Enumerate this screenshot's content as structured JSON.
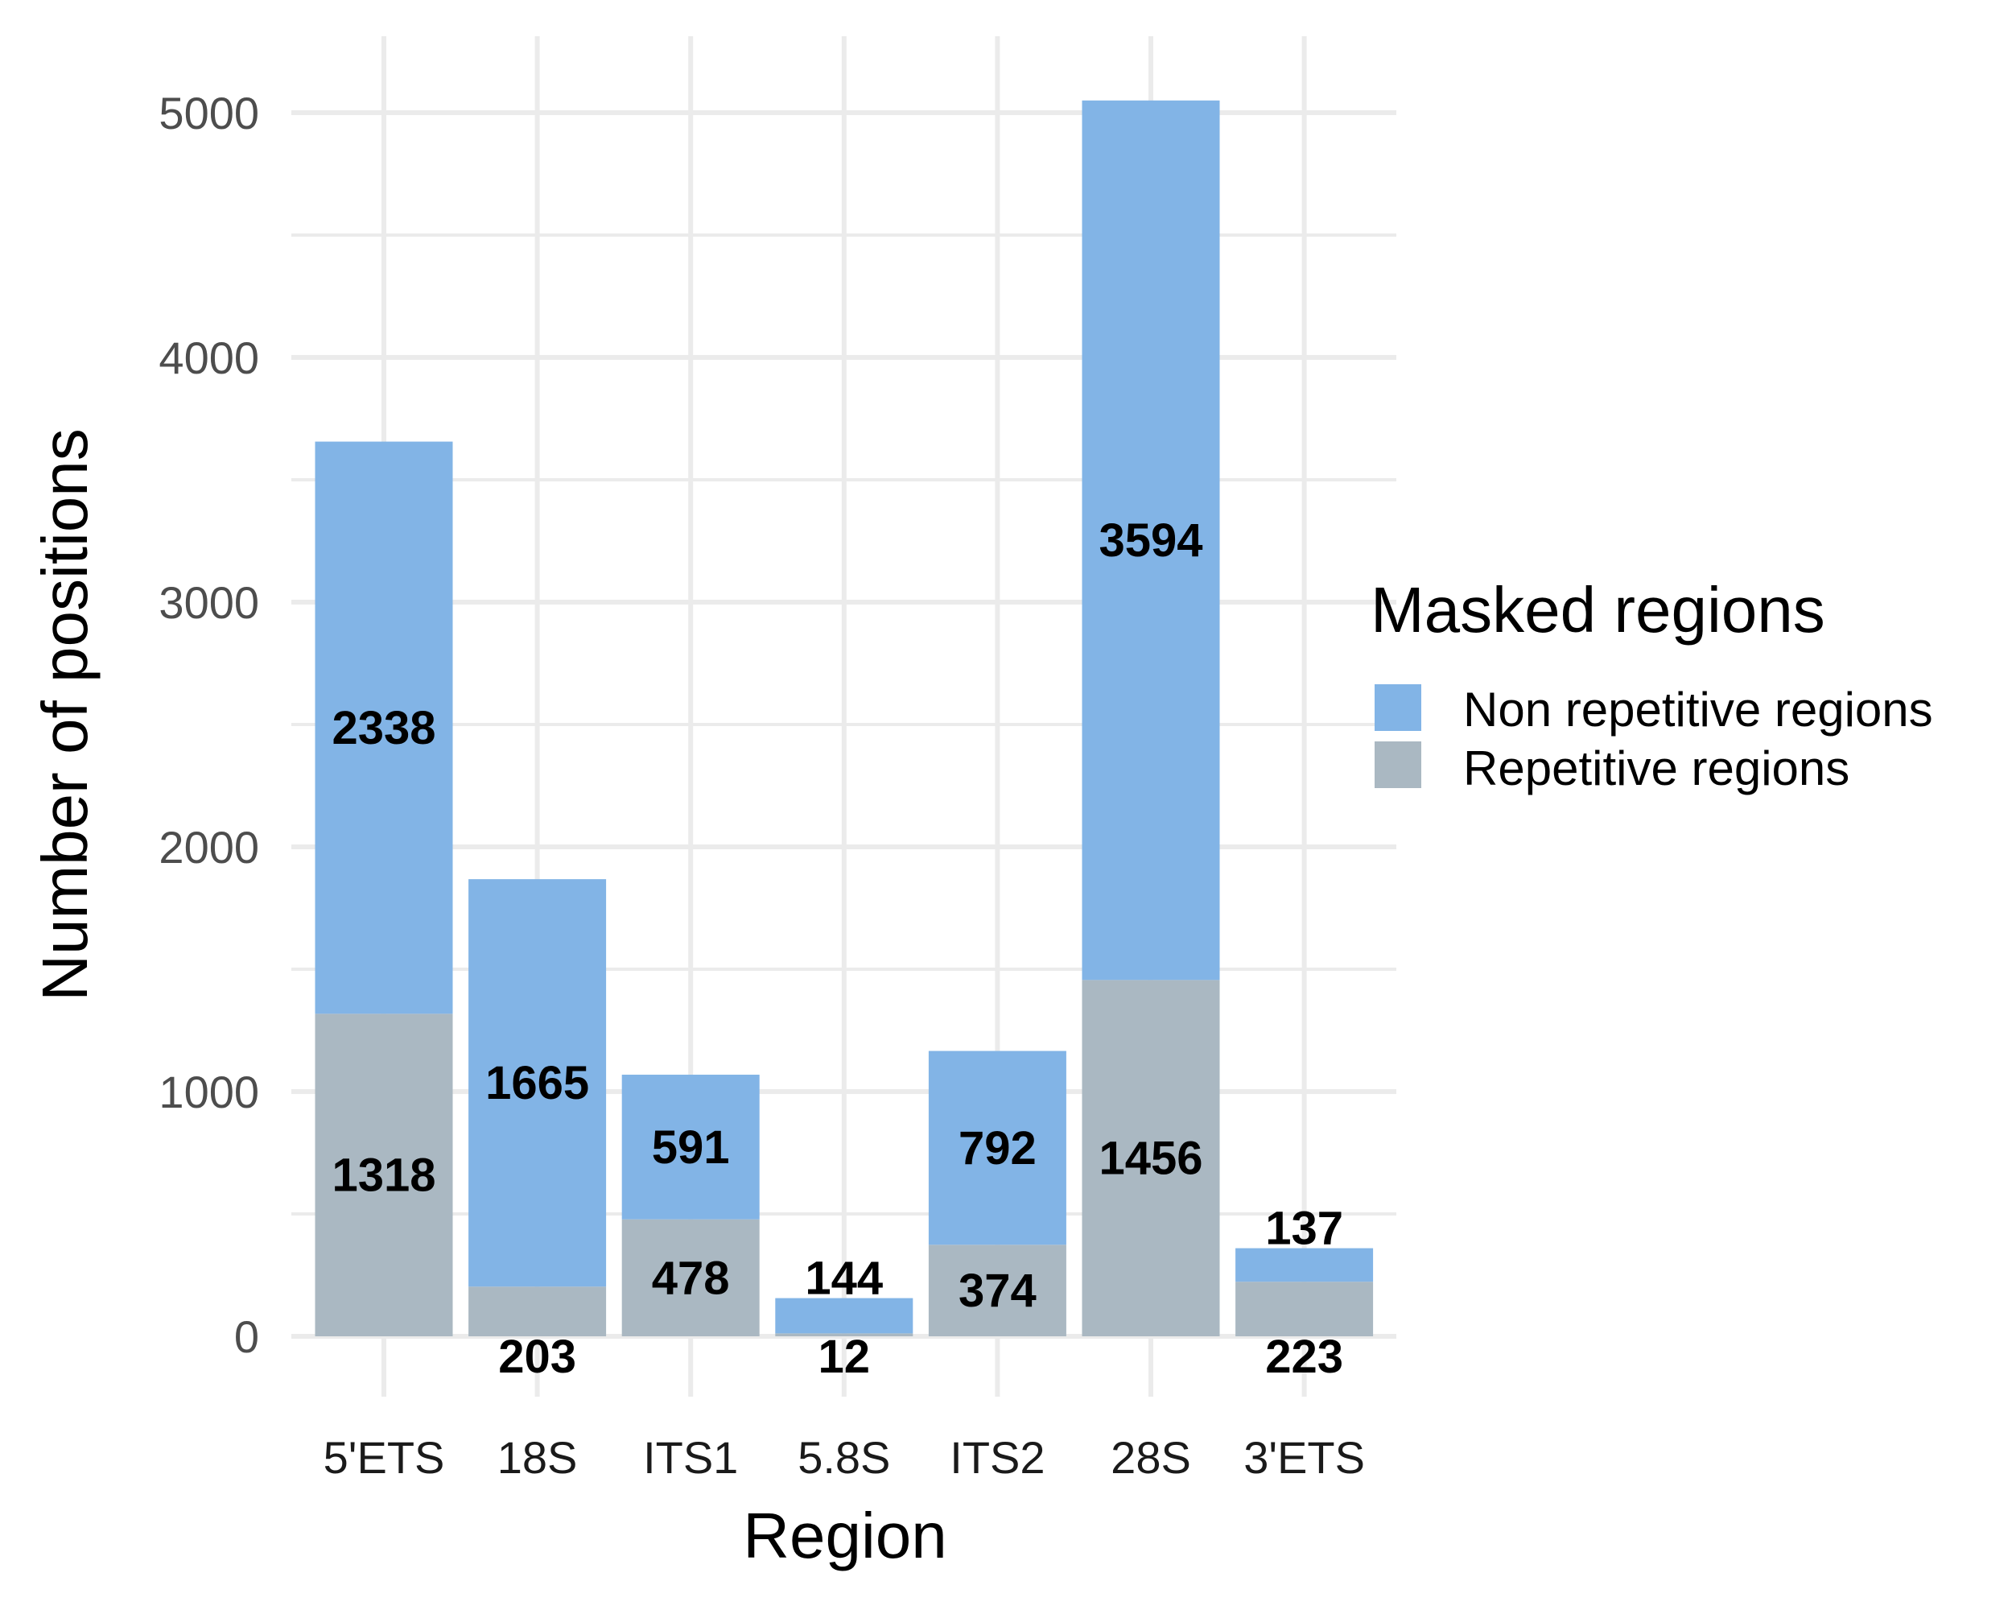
{
  "chart_data": {
    "type": "bar",
    "stacked": true,
    "xlabel": "Region",
    "ylabel": "Number of positions",
    "categories": [
      "5'ETS",
      "18S",
      "ITS1",
      "5.8S",
      "ITS2",
      "28S",
      "3'ETS"
    ],
    "series": [
      {
        "name": "Repetitive regions",
        "color": "#aab8c2",
        "values": [
          1318,
          203,
          478,
          12,
          374,
          1456,
          223
        ]
      },
      {
        "name": "Non repetitive regions",
        "color": "#82b4e6",
        "values": [
          2338,
          1665,
          591,
          144,
          792,
          3594,
          137
        ]
      }
    ],
    "ylim": [
      0,
      5000
    ],
    "yticks": [
      "0",
      "1000",
      "2000",
      "3000",
      "4000",
      "5000"
    ],
    "grid": true,
    "legend": {
      "title": "Masked regions",
      "position": "right",
      "entries": [
        "Non repetitive regions",
        "Repetitive regions"
      ]
    }
  }
}
